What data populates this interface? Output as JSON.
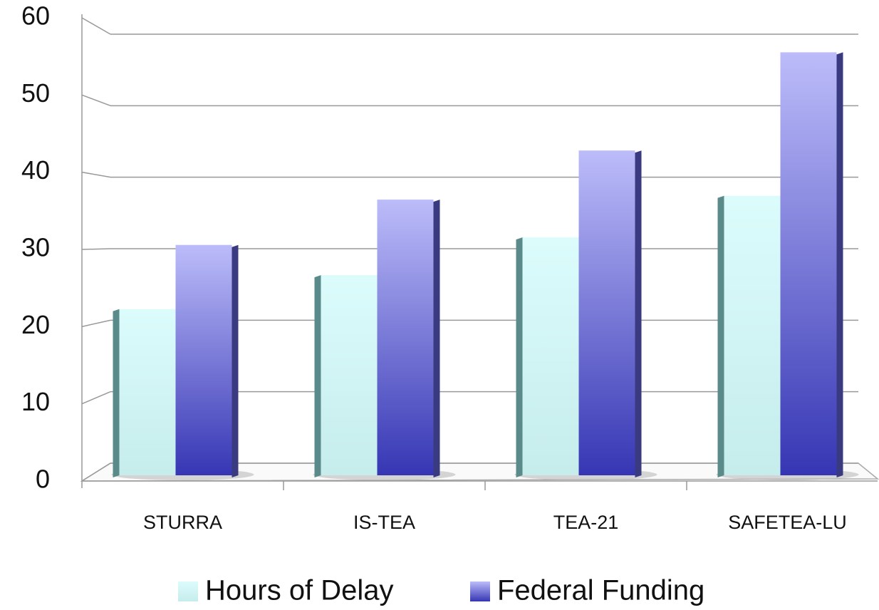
{
  "chart_data": {
    "type": "bar3d",
    "categories": [
      "STURRA",
      "IS-TEA",
      "TEA-21",
      "SAFETEA-LU"
    ],
    "series": [
      {
        "name": "Hours of Delay",
        "color": "#d0f6f6",
        "values": [
          22,
          26.5,
          31.5,
          37
        ]
      },
      {
        "name": "Federal Funding",
        "color": "#6a6ad8",
        "values": [
          30.5,
          36.5,
          43,
          56
        ]
      }
    ],
    "ylim": [
      0,
      60
    ],
    "yticks": [
      0,
      10,
      20,
      30,
      40,
      50,
      60
    ],
    "grid": true
  }
}
